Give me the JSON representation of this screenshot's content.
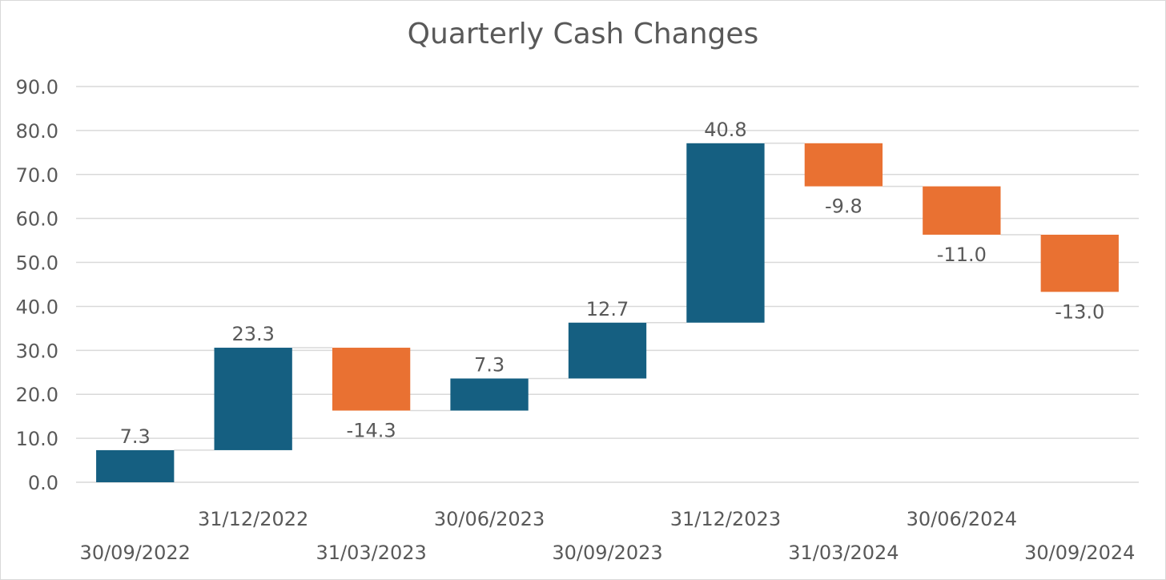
{
  "chart_data": {
    "type": "waterfall",
    "title": "Quarterly Cash Changes",
    "xlabel": "",
    "ylabel": "",
    "ylim": [
      0,
      90
    ],
    "y_ticks": [
      "0.0",
      "10.0",
      "20.0",
      "30.0",
      "40.0",
      "50.0",
      "60.0",
      "70.0",
      "80.0",
      "90.0"
    ],
    "grid": true,
    "categories": [
      "30/09/2022",
      "31/12/2022",
      "31/03/2023",
      "30/06/2023",
      "30/09/2023",
      "31/12/2023",
      "31/03/2024",
      "30/06/2024",
      "30/09/2024"
    ],
    "values": [
      7.3,
      23.3,
      -14.3,
      7.3,
      12.7,
      40.8,
      -9.8,
      -11.0,
      -13.0
    ],
    "data_labels": [
      "7.3",
      "23.3",
      "-14.3",
      "7.3",
      "12.7",
      "40.8",
      "-9.8",
      "-11.0",
      "-13.0"
    ],
    "colors": {
      "increase": "#155f81",
      "decrease": "#e97132",
      "connector": "#d9d9d9",
      "grid": "#d9d9d9",
      "text": "#595959"
    }
  }
}
